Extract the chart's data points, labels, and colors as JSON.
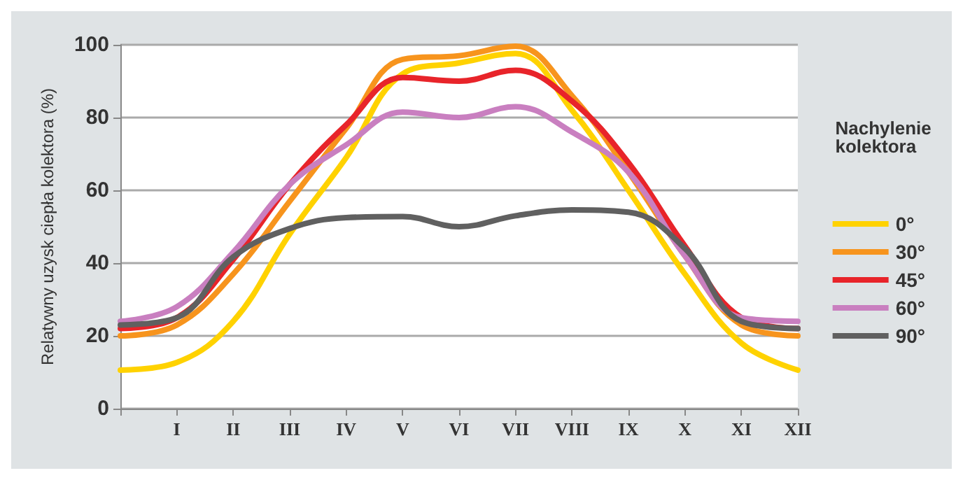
{
  "chart_data": {
    "type": "line",
    "ylabel": "Relatywny uzysk ciepła kolektora (%)",
    "legend_title": "Nachylenie kolektora",
    "categories": [
      null,
      "I",
      "II",
      "III",
      "IV",
      "V",
      "VI",
      "VII",
      "VIII",
      "IX",
      "X",
      "XI",
      "XII"
    ],
    "series": [
      {
        "name": "0°",
        "color": "#ffd200",
        "values": [
          10.6,
          12.7,
          24,
          48,
          69,
          92,
          95,
          97.6,
          82,
          60,
          37,
          18,
          10.6
        ]
      },
      {
        "name": "30°",
        "color": "#f7941d",
        "values": [
          20,
          23,
          37,
          57,
          77,
          96,
          97,
          99.6,
          86,
          65,
          42,
          23,
          20
        ]
      },
      {
        "name": "45°",
        "color": "#e8242a",
        "values": [
          22,
          25,
          41,
          61.6,
          78,
          91,
          90,
          93,
          84.5,
          67.6,
          44.7,
          25,
          22
        ]
      },
      {
        "name": "60°",
        "color": "#c97fc0",
        "values": [
          24,
          28,
          43,
          61.6,
          72.5,
          81.5,
          80,
          83,
          76,
          65,
          42,
          25,
          24
        ]
      },
      {
        "name": "90°",
        "color": "#606060",
        "values": [
          23,
          25,
          41.7,
          49.5,
          52.5,
          52.8,
          50,
          53,
          54.6,
          54,
          44,
          24,
          22
        ]
      }
    ],
    "ylim": [
      0,
      100
    ],
    "yticks": [
      0,
      20,
      40,
      60,
      80,
      100
    ],
    "grid": "y",
    "legend": "right",
    "marker": "none",
    "line_style": "solid"
  }
}
